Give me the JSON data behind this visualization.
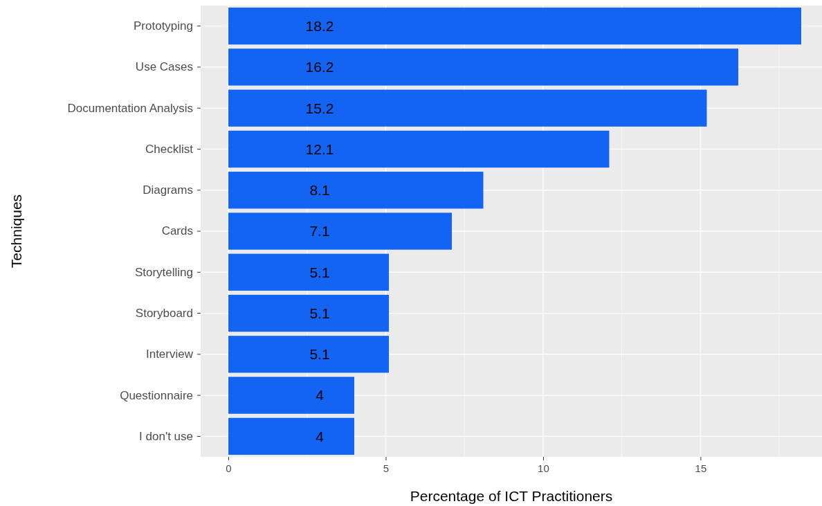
{
  "chart_data": {
    "type": "bar",
    "orientation": "horizontal",
    "xlabel": "Percentage of ICT Practitioners",
    "ylabel": "Techniques",
    "categories": [
      "Prototyping",
      "Use Cases",
      "Documentation Analysis",
      "Checklist",
      "Diagrams",
      "Cards",
      "Storytelling",
      "Storyboard",
      "Interview",
      "Questionnaire",
      "I don't use"
    ],
    "values": [
      18.2,
      16.2,
      15.2,
      12.1,
      8.1,
      7.1,
      5.1,
      5.1,
      5.1,
      4,
      4
    ],
    "color": "#1464f4",
    "xlim": [
      -0.88,
      18.86
    ],
    "xticks": [
      0,
      5,
      10,
      15
    ],
    "grid": true,
    "data_labels": true
  }
}
